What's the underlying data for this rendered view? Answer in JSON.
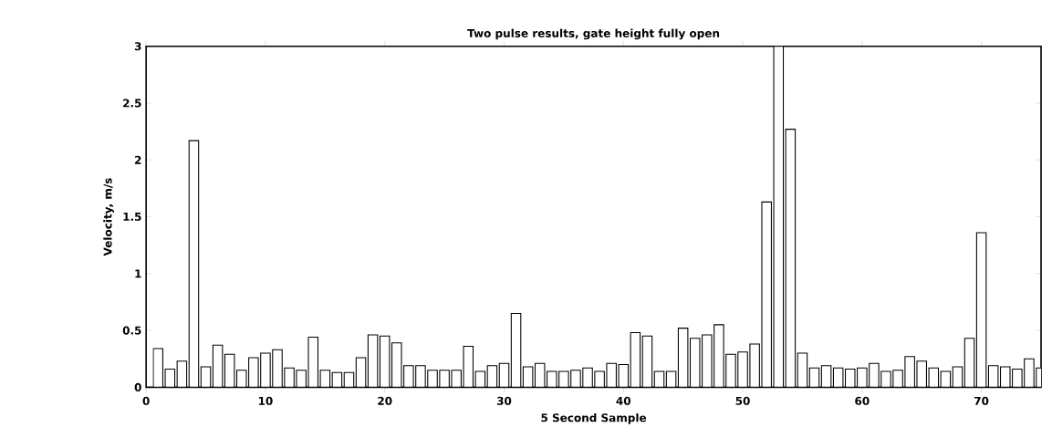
{
  "chart_data": {
    "type": "bar",
    "title": "Two pulse results, gate height fully open",
    "xlabel": "5 Second Sample",
    "ylabel": "Velocity, m/s",
    "x": [
      1,
      2,
      3,
      4,
      5,
      6,
      7,
      8,
      9,
      10,
      11,
      12,
      13,
      14,
      15,
      16,
      17,
      18,
      19,
      20,
      21,
      22,
      23,
      24,
      25,
      26,
      27,
      28,
      29,
      30,
      31,
      32,
      33,
      34,
      35,
      36,
      37,
      38,
      39,
      40,
      41,
      42,
      43,
      44,
      45,
      46,
      47,
      48,
      49,
      50,
      51,
      52,
      53,
      54,
      55,
      56,
      57,
      58,
      59,
      60,
      61,
      62,
      63,
      64,
      65,
      66,
      67,
      68,
      69,
      70,
      71,
      72,
      73,
      74,
      75
    ],
    "values": [
      0.34,
      0.16,
      0.23,
      2.17,
      0.18,
      0.37,
      0.29,
      0.15,
      0.26,
      0.3,
      0.33,
      0.17,
      0.15,
      0.44,
      0.15,
      0.13,
      0.13,
      0.26,
      0.46,
      0.45,
      0.39,
      0.19,
      0.19,
      0.15,
      0.15,
      0.15,
      0.36,
      0.14,
      0.19,
      0.21,
      0.65,
      0.18,
      0.21,
      0.14,
      0.14,
      0.15,
      0.17,
      0.14,
      0.21,
      0.2,
      0.48,
      0.45,
      0.14,
      0.14,
      0.52,
      0.43,
      0.46,
      0.55,
      0.29,
      0.31,
      0.38,
      1.63,
      3.0,
      2.27,
      0.3,
      0.17,
      0.19,
      0.17,
      0.16,
      0.17,
      0.21,
      0.14,
      0.15,
      0.27,
      0.23,
      0.17,
      0.14,
      0.18,
      0.43,
      1.36,
      0.19,
      0.18,
      0.16,
      0.25,
      0.17
    ],
    "color": "#ffffff",
    "xlim": [
      0,
      75
    ],
    "ylim": [
      0,
      3
    ],
    "xticks": [
      0,
      10,
      20,
      30,
      40,
      50,
      60,
      70
    ],
    "yticks": [
      0,
      0.5,
      1,
      1.5,
      2,
      2.5,
      3
    ],
    "grid": false
  }
}
